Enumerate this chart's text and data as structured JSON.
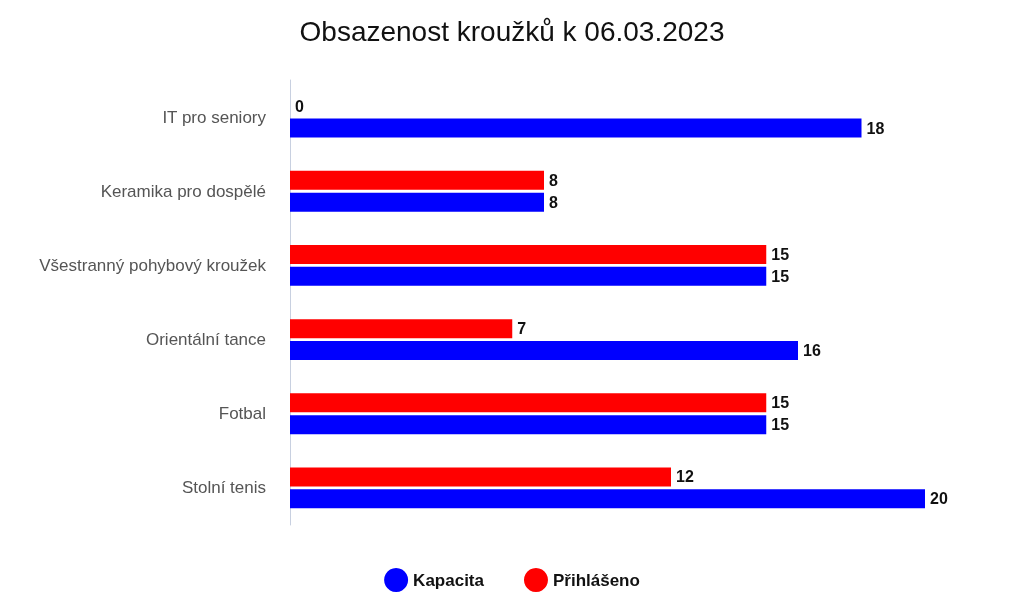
{
  "chart_data": {
    "type": "bar",
    "orientation": "horizontal",
    "title": "Obsazenost kroužků k 06.03.2023",
    "categories": [
      "IT pro seniory",
      "Keramika pro dospělé",
      "Všestranný pohybový kroužek",
      "Orientální tance",
      "Fotbal",
      "Stolní tenis"
    ],
    "series": [
      {
        "name": "Kapacita",
        "color": "#0000ff",
        "values": [
          18,
          8,
          15,
          16,
          15,
          20
        ]
      },
      {
        "name": "Přihlášeno",
        "color": "#ff0000",
        "values": [
          0,
          8,
          15,
          7,
          15,
          12
        ]
      }
    ],
    "data_labels": true,
    "legend": "bottom"
  }
}
